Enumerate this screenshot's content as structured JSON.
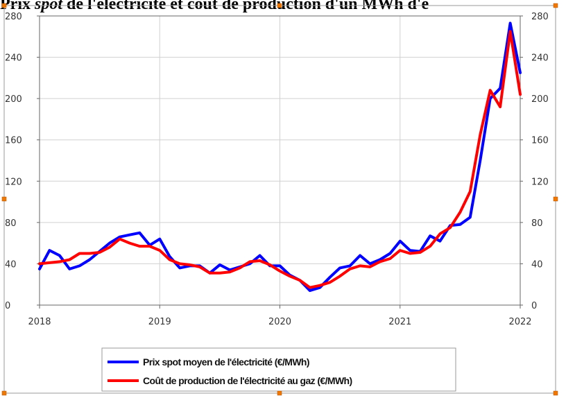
{
  "title": {
    "part1": "Prix ",
    "part2": "spot",
    "part3": " de l'électricité et coût de production d'un MWh d'é"
  },
  "colors": {
    "series_blue": "#0000ff",
    "series_red": "#ff0000",
    "grid": "#d0d0d0",
    "handles": "#f07800"
  },
  "chart_data": {
    "type": "line",
    "title": "Prix spot de l'électricité et coût de production d'un MWh d'é",
    "xlabel": "",
    "ylabel": "",
    "xlim": [
      2018,
      2022
    ],
    "ylim": [
      0,
      280
    ],
    "x_ticks": [
      "2018",
      "2019",
      "2020",
      "2021",
      "2022"
    ],
    "y_ticks": [
      "0",
      "40",
      "80",
      "120",
      "160",
      "200",
      "240",
      "280"
    ],
    "grid": true,
    "secondary_y_axis": true,
    "legend_position": "bottom",
    "x": [
      2018.0,
      2018.083,
      2018.167,
      2018.25,
      2018.333,
      2018.417,
      2018.5,
      2018.583,
      2018.667,
      2018.75,
      2018.833,
      2018.917,
      2019.0,
      2019.083,
      2019.167,
      2019.25,
      2019.333,
      2019.417,
      2019.5,
      2019.583,
      2019.667,
      2019.75,
      2019.833,
      2019.917,
      2020.0,
      2020.083,
      2020.167,
      2020.25,
      2020.333,
      2020.417,
      2020.5,
      2020.583,
      2020.667,
      2020.75,
      2020.833,
      2020.917,
      2021.0,
      2021.083,
      2021.167,
      2021.25,
      2021.333,
      2021.417,
      2021.5,
      2021.583,
      2021.667,
      2021.75,
      2021.833,
      2021.917,
      2022.0
    ],
    "series": [
      {
        "name": "Prix spot moyen de l'électricité (€/MWh)",
        "color": "#0000ff",
        "values": [
          35,
          53,
          48,
          35,
          38,
          44,
          52,
          60,
          66,
          68,
          70,
          58,
          64,
          47,
          36,
          38,
          38,
          31,
          39,
          34,
          37,
          40,
          48,
          38,
          38,
          29,
          24,
          14,
          17,
          27,
          36,
          38,
          48,
          40,
          44,
          50,
          62,
          53,
          52,
          67,
          62,
          77,
          78,
          85,
          140,
          200,
          210,
          273,
          225
        ]
      },
      {
        "name": "Coût de production de l'électricité au gaz (€/MWh)",
        "color": "#ff0000",
        "values": [
          40,
          41,
          42,
          44,
          50,
          50,
          51,
          56,
          64,
          60,
          57,
          57,
          53,
          44,
          40,
          39,
          37,
          31,
          31,
          32,
          36,
          42,
          43,
          39,
          33,
          28,
          24,
          17,
          19,
          22,
          28,
          35,
          38,
          37,
          42,
          45,
          53,
          50,
          51,
          57,
          69,
          75,
          90,
          110,
          165,
          208,
          192,
          265,
          204
        ]
      }
    ]
  }
}
